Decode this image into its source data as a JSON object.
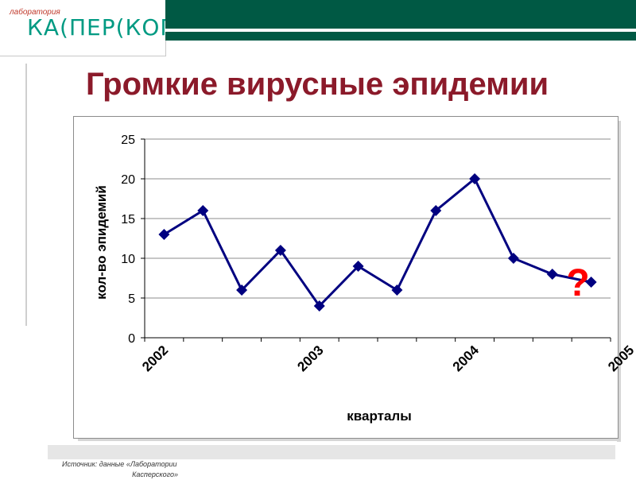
{
  "logo": {
    "small": "лаборатория",
    "main": "КА(ПЕР(КОГО"
  },
  "title": "Громкие вирусные эпидемии",
  "annotation": "?",
  "source": {
    "line1": "Источник: данные «Лаборатории",
    "line2": "Касперского»"
  },
  "chart_data": {
    "type": "line",
    "title": "",
    "xlabel": "кварталы",
    "ylabel": "кол-во эпидемий",
    "ylim": [
      0,
      25
    ],
    "yticks": [
      0,
      5,
      10,
      15,
      20,
      25
    ],
    "xticks": [
      "2002",
      "2003",
      "2004",
      "2005"
    ],
    "grid": true,
    "legend": "none",
    "series": [
      {
        "values": [
          13,
          16,
          6,
          11,
          4,
          9,
          6,
          16,
          20,
          10,
          8,
          7
        ],
        "color": "#000080"
      }
    ]
  }
}
